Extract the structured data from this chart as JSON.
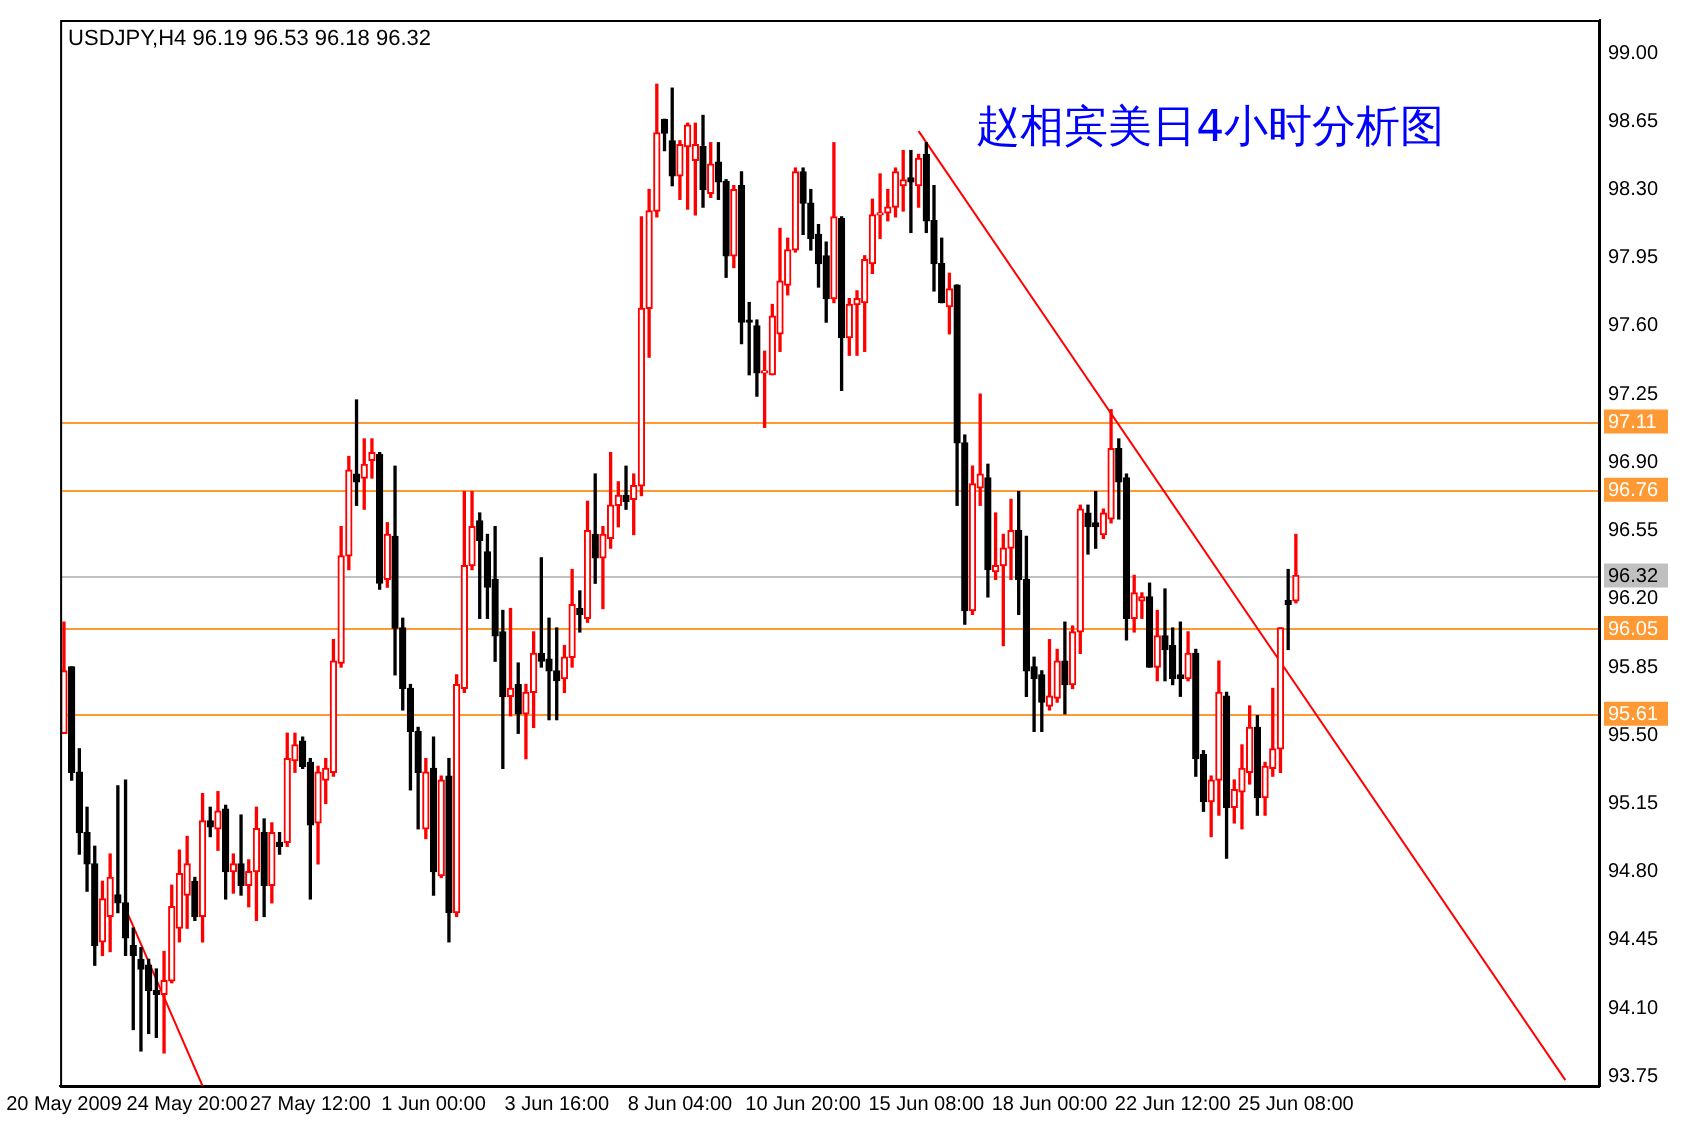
{
  "chart_data": {
    "type": "candlestick",
    "title": "赵相宾美日4小时分析图",
    "subtitle": "USDJPY,H4 96.19 96.53 96.18 96.32",
    "categories": [
      "20 May 2009",
      null,
      null,
      null,
      null,
      null,
      null,
      null,
      null,
      null,
      null,
      null,
      null,
      null,
      null,
      null,
      "24 May 20:00",
      null,
      null,
      null,
      null,
      null,
      null,
      null,
      null,
      null,
      null,
      null,
      null,
      null,
      null,
      null,
      "27 May 12:00",
      null,
      null,
      null,
      null,
      null,
      null,
      null,
      null,
      null,
      null,
      null,
      null,
      null,
      null,
      null,
      "1 Jun 00:00",
      null,
      null,
      null,
      null,
      null,
      null,
      null,
      null,
      null,
      null,
      null,
      null,
      null,
      null,
      null,
      "3 Jun 16:00",
      null,
      null,
      null,
      null,
      null,
      null,
      null,
      null,
      null,
      null,
      null,
      null,
      null,
      null,
      null,
      "8 Jun 04:00",
      null,
      null,
      null,
      null,
      null,
      null,
      null,
      null,
      null,
      null,
      null,
      null,
      null,
      null,
      null,
      "10 Jun 20:00",
      null,
      null,
      null,
      null,
      null,
      null,
      null,
      null,
      null,
      null,
      null,
      null,
      null,
      null,
      null,
      "15 Jun 08:00",
      null,
      null,
      null,
      null,
      null,
      null,
      null,
      null,
      null,
      null,
      null,
      null,
      null,
      null,
      null,
      "18 Jun 00:00",
      null,
      null,
      null,
      null,
      null,
      null,
      null,
      null,
      null,
      null,
      null,
      null,
      null,
      null,
      null,
      "22 Jun 12:00",
      null,
      null,
      null,
      null,
      null,
      null,
      null,
      null,
      null,
      null,
      null,
      null,
      null,
      null,
      null,
      "25 Jun 08:00",
      null,
      null,
      null,
      null,
      null,
      null,
      null,
      null,
      null,
      null,
      null,
      null,
      null,
      null,
      null,
      null,
      null,
      null,
      null,
      null,
      null,
      null,
      null,
      null,
      null,
      null,
      null,
      null,
      null,
      null,
      null,
      null,
      null,
      null,
      null,
      null,
      null,
      null,
      null
    ],
    "ohlc": [
      [
        95.51,
        96.08,
        95.51,
        95.83
      ],
      [
        95.85,
        95.85,
        95.27,
        95.31
      ],
      [
        95.31,
        95.43,
        94.89,
        95.0
      ],
      [
        95.0,
        95.13,
        94.7,
        94.84
      ],
      [
        94.84,
        94.93,
        94.32,
        94.42
      ],
      [
        94.44,
        94.75,
        94.37,
        94.66
      ],
      [
        94.57,
        94.89,
        94.39,
        94.77
      ],
      [
        94.68,
        95.24,
        94.59,
        94.64
      ],
      [
        94.64,
        95.27,
        94.37,
        94.46
      ],
      [
        94.42,
        94.51,
        93.99,
        94.37
      ],
      [
        94.35,
        94.41,
        93.88,
        94.3
      ],
      [
        94.32,
        94.35,
        93.97,
        94.19
      ],
      [
        94.19,
        94.3,
        93.95,
        94.17
      ],
      [
        94.17,
        94.39,
        93.87,
        94.24
      ],
      [
        94.24,
        94.73,
        94.23,
        94.62
      ],
      [
        94.51,
        94.91,
        94.44,
        94.79
      ],
      [
        94.68,
        94.98,
        94.51,
        94.84
      ],
      [
        94.75,
        94.77,
        94.55,
        94.57
      ],
      [
        94.57,
        95.2,
        94.44,
        95.06
      ],
      [
        95.06,
        95.13,
        94.98,
        95.03
      ],
      [
        95.02,
        95.21,
        94.91,
        95.11
      ],
      [
        95.12,
        95.14,
        94.66,
        94.8
      ],
      [
        94.8,
        94.89,
        94.69,
        94.84
      ],
      [
        94.84,
        95.09,
        94.68,
        94.73
      ],
      [
        94.73,
        94.86,
        94.62,
        94.8
      ],
      [
        94.8,
        95.13,
        94.55,
        95.02
      ],
      [
        95.0,
        95.07,
        94.57,
        94.73
      ],
      [
        94.73,
        95.05,
        94.64,
        95.0
      ],
      [
        94.95,
        95.0,
        94.89,
        94.93
      ],
      [
        94.95,
        95.51,
        94.93,
        95.38
      ],
      [
        95.37,
        95.51,
        95.31,
        95.45
      ],
      [
        95.47,
        95.49,
        95.33,
        95.34
      ],
      [
        95.36,
        95.38,
        94.66,
        95.04
      ],
      [
        95.05,
        95.34,
        94.84,
        95.31
      ],
      [
        95.27,
        95.38,
        95.15,
        95.33
      ],
      [
        95.31,
        95.99,
        95.29,
        95.88
      ],
      [
        95.87,
        96.57,
        95.85,
        96.42
      ],
      [
        96.42,
        96.93,
        96.35,
        96.86
      ],
      [
        96.84,
        97.22,
        96.68,
        96.8
      ],
      [
        96.82,
        97.02,
        96.66,
        96.89
      ],
      [
        96.91,
        97.02,
        96.82,
        96.95
      ],
      [
        96.94,
        96.95,
        96.25,
        96.28
      ],
      [
        96.3,
        96.59,
        96.26,
        96.53
      ],
      [
        96.52,
        96.88,
        95.81,
        96.05
      ],
      [
        96.05,
        96.1,
        95.63,
        95.74
      ],
      [
        95.74,
        95.76,
        95.22,
        95.52
      ],
      [
        95.52,
        95.54,
        95.02,
        95.31
      ],
      [
        95.02,
        95.38,
        94.97,
        95.31
      ],
      [
        95.33,
        95.49,
        94.68,
        94.8
      ],
      [
        94.78,
        95.29,
        94.77,
        95.27
      ],
      [
        95.29,
        95.38,
        94.44,
        94.59
      ],
      [
        94.59,
        95.81,
        94.57,
        95.76
      ],
      [
        95.74,
        96.75,
        95.72,
        96.37
      ],
      [
        96.37,
        96.75,
        96.35,
        96.57
      ],
      [
        96.6,
        96.64,
        96.1,
        96.5
      ],
      [
        96.44,
        96.53,
        96.1,
        96.26
      ],
      [
        96.3,
        96.57,
        95.88,
        96.01
      ],
      [
        96.03,
        96.14,
        95.33,
        95.7
      ],
      [
        95.7,
        96.15,
        95.6,
        95.74
      ],
      [
        95.76,
        95.87,
        95.51,
        95.61
      ],
      [
        95.61,
        95.76,
        95.38,
        95.72
      ],
      [
        95.72,
        96.03,
        95.54,
        95.92
      ],
      [
        95.92,
        96.41,
        95.85,
        95.88
      ],
      [
        95.89,
        96.1,
        95.58,
        95.83
      ],
      [
        95.83,
        96.05,
        95.58,
        95.78
      ],
      [
        95.79,
        95.96,
        95.72,
        95.9
      ],
      [
        95.9,
        96.35,
        95.85,
        96.17
      ],
      [
        96.15,
        96.24,
        96.03,
        96.12
      ],
      [
        96.1,
        96.7,
        96.08,
        96.55
      ],
      [
        96.53,
        96.84,
        96.28,
        96.41
      ],
      [
        96.41,
        96.57,
        96.15,
        96.53
      ],
      [
        96.51,
        96.95,
        96.46,
        96.68
      ],
      [
        96.68,
        96.8,
        96.57,
        96.73
      ],
      [
        96.73,
        96.88,
        96.66,
        96.7
      ],
      [
        96.71,
        96.84,
        96.53,
        96.78
      ],
      [
        96.78,
        98.16,
        96.73,
        97.69
      ],
      [
        97.69,
        98.3,
        97.44,
        98.19
      ],
      [
        98.19,
        98.84,
        98.16,
        98.59
      ],
      [
        98.66,
        98.66,
        98.5,
        98.59
      ],
      [
        98.55,
        98.82,
        98.32,
        98.37
      ],
      [
        98.37,
        98.55,
        98.25,
        98.53
      ],
      [
        98.52,
        98.64,
        98.2,
        98.63
      ],
      [
        98.45,
        98.64,
        98.17,
        98.53
      ],
      [
        98.52,
        98.68,
        98.21,
        98.3
      ],
      [
        98.28,
        98.54,
        98.26,
        98.43
      ],
      [
        98.44,
        98.54,
        98.25,
        98.34
      ],
      [
        98.34,
        98.35,
        97.85,
        97.96
      ],
      [
        97.96,
        98.32,
        97.9,
        98.3
      ],
      [
        98.32,
        98.39,
        97.51,
        97.62
      ],
      [
        97.63,
        97.72,
        97.35,
        97.62
      ],
      [
        97.6,
        97.63,
        97.24,
        97.36
      ],
      [
        97.36,
        97.47,
        97.08,
        97.37
      ],
      [
        97.35,
        97.71,
        97.35,
        97.65
      ],
      [
        97.56,
        98.1,
        97.47,
        97.83
      ],
      [
        97.81,
        98.05,
        97.76,
        97.99
      ],
      [
        97.99,
        98.41,
        97.98,
        98.39
      ],
      [
        98.39,
        98.41,
        98.07,
        98.23
      ],
      [
        98.23,
        98.3,
        97.99,
        98.05
      ],
      [
        98.07,
        98.12,
        97.8,
        97.92
      ],
      [
        97.96,
        98.03,
        97.62,
        97.74
      ],
      [
        97.74,
        98.54,
        97.72,
        98.16
      ],
      [
        98.15,
        98.16,
        97.27,
        97.54
      ],
      [
        97.54,
        97.74,
        97.45,
        97.71
      ],
      [
        97.71,
        97.78,
        97.45,
        97.74
      ],
      [
        97.72,
        97.96,
        97.47,
        97.94
      ],
      [
        97.92,
        98.25,
        97.87,
        98.17
      ],
      [
        98.17,
        98.38,
        98.05,
        98.18
      ],
      [
        98.18,
        98.3,
        98.14,
        98.21
      ],
      [
        98.21,
        98.41,
        98.16,
        98.39
      ],
      [
        98.32,
        98.5,
        98.19,
        98.35
      ],
      [
        98.36,
        98.5,
        98.08,
        98.34
      ],
      [
        98.32,
        98.48,
        98.21,
        98.46
      ],
      [
        98.48,
        98.54,
        98.08,
        98.14
      ],
      [
        98.14,
        98.32,
        97.78,
        97.92
      ],
      [
        97.92,
        98.05,
        97.72,
        97.72
      ],
      [
        97.7,
        97.87,
        97.56,
        97.79
      ],
      [
        97.81,
        97.81,
        96.68,
        97.0
      ],
      [
        97.0,
        97.04,
        96.07,
        96.14
      ],
      [
        96.14,
        96.88,
        96.12,
        96.79
      ],
      [
        96.77,
        97.25,
        96.68,
        96.84
      ],
      [
        96.82,
        96.89,
        96.21,
        96.35
      ],
      [
        96.34,
        96.64,
        96.3,
        96.37
      ],
      [
        96.37,
        96.53,
        95.96,
        96.46
      ],
      [
        96.46,
        96.71,
        96.3,
        96.55
      ],
      [
        96.55,
        96.75,
        96.12,
        96.3
      ],
      [
        96.3,
        96.52,
        95.7,
        95.83
      ],
      [
        95.85,
        95.9,
        95.52,
        95.79
      ],
      [
        95.81,
        95.83,
        95.52,
        95.67
      ],
      [
        95.65,
        95.99,
        95.63,
        95.7
      ],
      [
        95.69,
        95.94,
        95.67,
        95.88
      ],
      [
        95.88,
        96.08,
        95.61,
        95.76
      ],
      [
        95.76,
        96.06,
        95.74,
        96.03
      ],
      [
        96.03,
        96.68,
        95.92,
        96.66
      ],
      [
        96.64,
        96.68,
        96.43,
        96.57
      ],
      [
        96.59,
        96.75,
        96.46,
        96.57
      ],
      [
        96.53,
        96.66,
        96.51,
        96.64
      ],
      [
        96.61,
        97.17,
        96.59,
        96.97
      ],
      [
        96.97,
        97.02,
        96.61,
        96.8
      ],
      [
        96.82,
        96.84,
        95.99,
        96.1
      ],
      [
        96.1,
        96.32,
        96.03,
        96.23
      ],
      [
        96.19,
        96.23,
        96.1,
        96.21
      ],
      [
        96.21,
        96.28,
        95.85,
        95.85
      ],
      [
        95.85,
        96.14,
        95.78,
        96.01
      ],
      [
        96.01,
        96.25,
        95.78,
        95.94
      ],
      [
        95.96,
        96.05,
        95.76,
        95.79
      ],
      [
        95.81,
        96.08,
        95.7,
        95.79
      ],
      [
        95.79,
        96.03,
        95.78,
        95.92
      ],
      [
        95.92,
        95.94,
        95.29,
        95.38
      ],
      [
        95.4,
        95.42,
        95.11,
        95.16
      ],
      [
        95.16,
        95.29,
        94.98,
        95.27
      ],
      [
        95.27,
        95.88,
        95.09,
        95.72
      ],
      [
        95.7,
        95.72,
        94.87,
        95.13
      ],
      [
        95.13,
        95.27,
        95.05,
        95.22
      ],
      [
        95.21,
        95.45,
        95.02,
        95.33
      ],
      [
        95.31,
        95.65,
        95.25,
        95.54
      ],
      [
        95.54,
        95.6,
        95.09,
        95.18
      ],
      [
        95.18,
        95.36,
        95.09,
        95.34
      ],
      [
        95.33,
        95.74,
        95.29,
        95.43
      ],
      [
        95.43,
        96.05,
        95.31,
        96.05
      ],
      [
        96.19,
        96.35,
        95.94,
        96.17
      ],
      [
        96.19,
        96.53,
        96.18,
        96.32
      ],
      null,
      null,
      null,
      null,
      null,
      null,
      null,
      null,
      null,
      null,
      null,
      null,
      null,
      null,
      null,
      null,
      null,
      null,
      null,
      null,
      null,
      null,
      null,
      null,
      null,
      null,
      null,
      null,
      null,
      null,
      null,
      null,
      null,
      null,
      null,
      null,
      null,
      null,
      null
    ],
    "series": [
      {
        "type": "line",
        "color": "#ff0000",
        "values": [
          null,
          null,
          null,
          null,
          null,
          null,
          null,
          null,
          null,
          null,
          null,
          null,
          null,
          null,
          null,
          null,
          null,
          null,
          null,
          null,
          null,
          null,
          null,
          null,
          null,
          null,
          null,
          null,
          null,
          null,
          null,
          null,
          null,
          null,
          null,
          null,
          null,
          null,
          null,
          null,
          null,
          null,
          null,
          null,
          null,
          null,
          null,
          null,
          null,
          null,
          null,
          null,
          null,
          null,
          null,
          null,
          null,
          null,
          null,
          null,
          null,
          null,
          null,
          null,
          null,
          null,
          null,
          null,
          null,
          null,
          null,
          null,
          null,
          null,
          null,
          null,
          null,
          null,
          null,
          null,
          null,
          null,
          null,
          null,
          null,
          null,
          null,
          null,
          null,
          null,
          null,
          null,
          null,
          null,
          null,
          null,
          null,
          null,
          null,
          null,
          null,
          null,
          null,
          null,
          null,
          null,
          null,
          null,
          null,
          null,
          null,
          98.6,
          null,
          null,
          null,
          null,
          null,
          null,
          null,
          null,
          null,
          null,
          null,
          null,
          null,
          null,
          null,
          null,
          null,
          null,
          null,
          null,
          null,
          null,
          null,
          null,
          null,
          null,
          null,
          null,
          null,
          null,
          null,
          null,
          null,
          null,
          null,
          null,
          null,
          null,
          null,
          null,
          null,
          null,
          null,
          null,
          null,
          null,
          null,
          null,
          null,
          null,
          null,
          null,
          null,
          null,
          null,
          null,
          null,
          null,
          null,
          null,
          null,
          null,
          null,
          null,
          null,
          null,
          null,
          null,
          null,
          null,
          null,
          null,
          null,
          null,
          null,
          null,
          null,
          null,
          null,
          null,
          null,
          null,
          null,
          93.73,
          null,
          null,
          null,
          null
        ]
      },
      {
        "type": "line",
        "color": "#ff0000",
        "values": [
          null,
          null,
          null,
          null,
          null,
          null,
          null,
          null,
          94.61,
          null,
          null,
          null,
          null,
          null,
          null,
          null,
          null,
          null,
          93.7,
          null,
          null,
          null,
          null,
          null,
          null,
          null,
          null,
          null,
          null,
          null,
          null,
          null,
          null,
          null,
          null,
          null,
          null,
          null,
          null,
          null,
          null,
          null,
          null,
          null,
          null,
          null,
          null,
          null,
          null,
          null,
          null,
          null,
          null,
          null,
          null,
          null,
          null,
          null,
          null,
          null,
          null,
          null,
          null,
          null,
          null,
          null,
          null,
          null,
          null,
          null,
          null,
          null,
          null,
          null,
          null,
          null,
          null,
          null,
          null,
          null,
          null,
          null,
          null,
          null,
          null,
          null,
          null,
          null,
          null,
          null,
          null,
          null,
          null,
          null,
          null,
          null,
          null,
          null,
          null,
          null,
          null,
          null,
          null,
          null,
          null,
          null,
          null,
          null,
          null,
          null,
          null,
          null,
          null,
          null,
          null,
          null,
          null,
          null,
          null,
          null,
          null,
          null,
          null,
          null,
          null,
          null,
          null,
          null,
          null,
          null,
          null,
          null,
          null,
          null,
          null,
          null,
          null,
          null,
          null,
          null,
          null,
          null,
          null,
          null,
          null,
          null,
          null,
          null,
          null,
          null,
          null,
          null,
          null,
          null,
          null,
          null,
          null,
          null,
          null,
          null,
          null,
          null,
          null,
          null,
          null,
          null,
          null,
          null,
          null,
          null,
          null,
          null,
          null,
          null,
          null,
          null,
          null,
          null,
          null,
          null,
          null,
          null,
          null,
          null,
          null,
          null,
          null,
          null,
          null,
          null,
          null,
          null,
          null,
          null,
          null,
          null,
          null,
          null,
          null,
          null
        ]
      }
    ],
    "ref_lines": [
      {
        "axis": "y",
        "value": 97.11,
        "label": "97.11",
        "color": "#ff9933"
      },
      {
        "axis": "y",
        "value": 96.76,
        "label": "96.76",
        "color": "#ff9933"
      },
      {
        "axis": "y",
        "value": 96.32,
        "label": "96.32",
        "color": "#c0c0c0"
      },
      {
        "axis": "y",
        "value": 96.05,
        "label": "96.05",
        "color": "#ff9933"
      },
      {
        "axis": "y",
        "value": 95.61,
        "label": "95.61",
        "color": "#ff9933"
      }
    ],
    "ylim": [
      93.7,
      99.17
    ],
    "yticks": [
      {
        "value": 93.75,
        "label": "93.75"
      },
      {
        "value": 94.1,
        "label": "94.10"
      },
      {
        "value": 94.45,
        "label": "94.45"
      },
      {
        "value": 94.8,
        "label": "94.80"
      },
      {
        "value": 95.15,
        "label": "95.15"
      },
      {
        "value": 95.5,
        "label": "95.50"
      },
      {
        "value": 95.85,
        "label": "95.85"
      },
      {
        "value": 96.2,
        "label": "96.20"
      },
      {
        "value": 96.55,
        "label": "96.55"
      },
      {
        "value": 96.9,
        "label": "96.90"
      },
      {
        "value": 97.25,
        "label": "97.25"
      },
      {
        "value": 97.6,
        "label": "97.60"
      },
      {
        "value": 97.95,
        "label": "97.95"
      },
      {
        "value": 98.3,
        "label": "98.30"
      },
      {
        "value": 98.65,
        "label": "98.65"
      },
      {
        "value": 99.0,
        "label": "99.00"
      }
    ],
    "grid": false,
    "legend": false
  }
}
